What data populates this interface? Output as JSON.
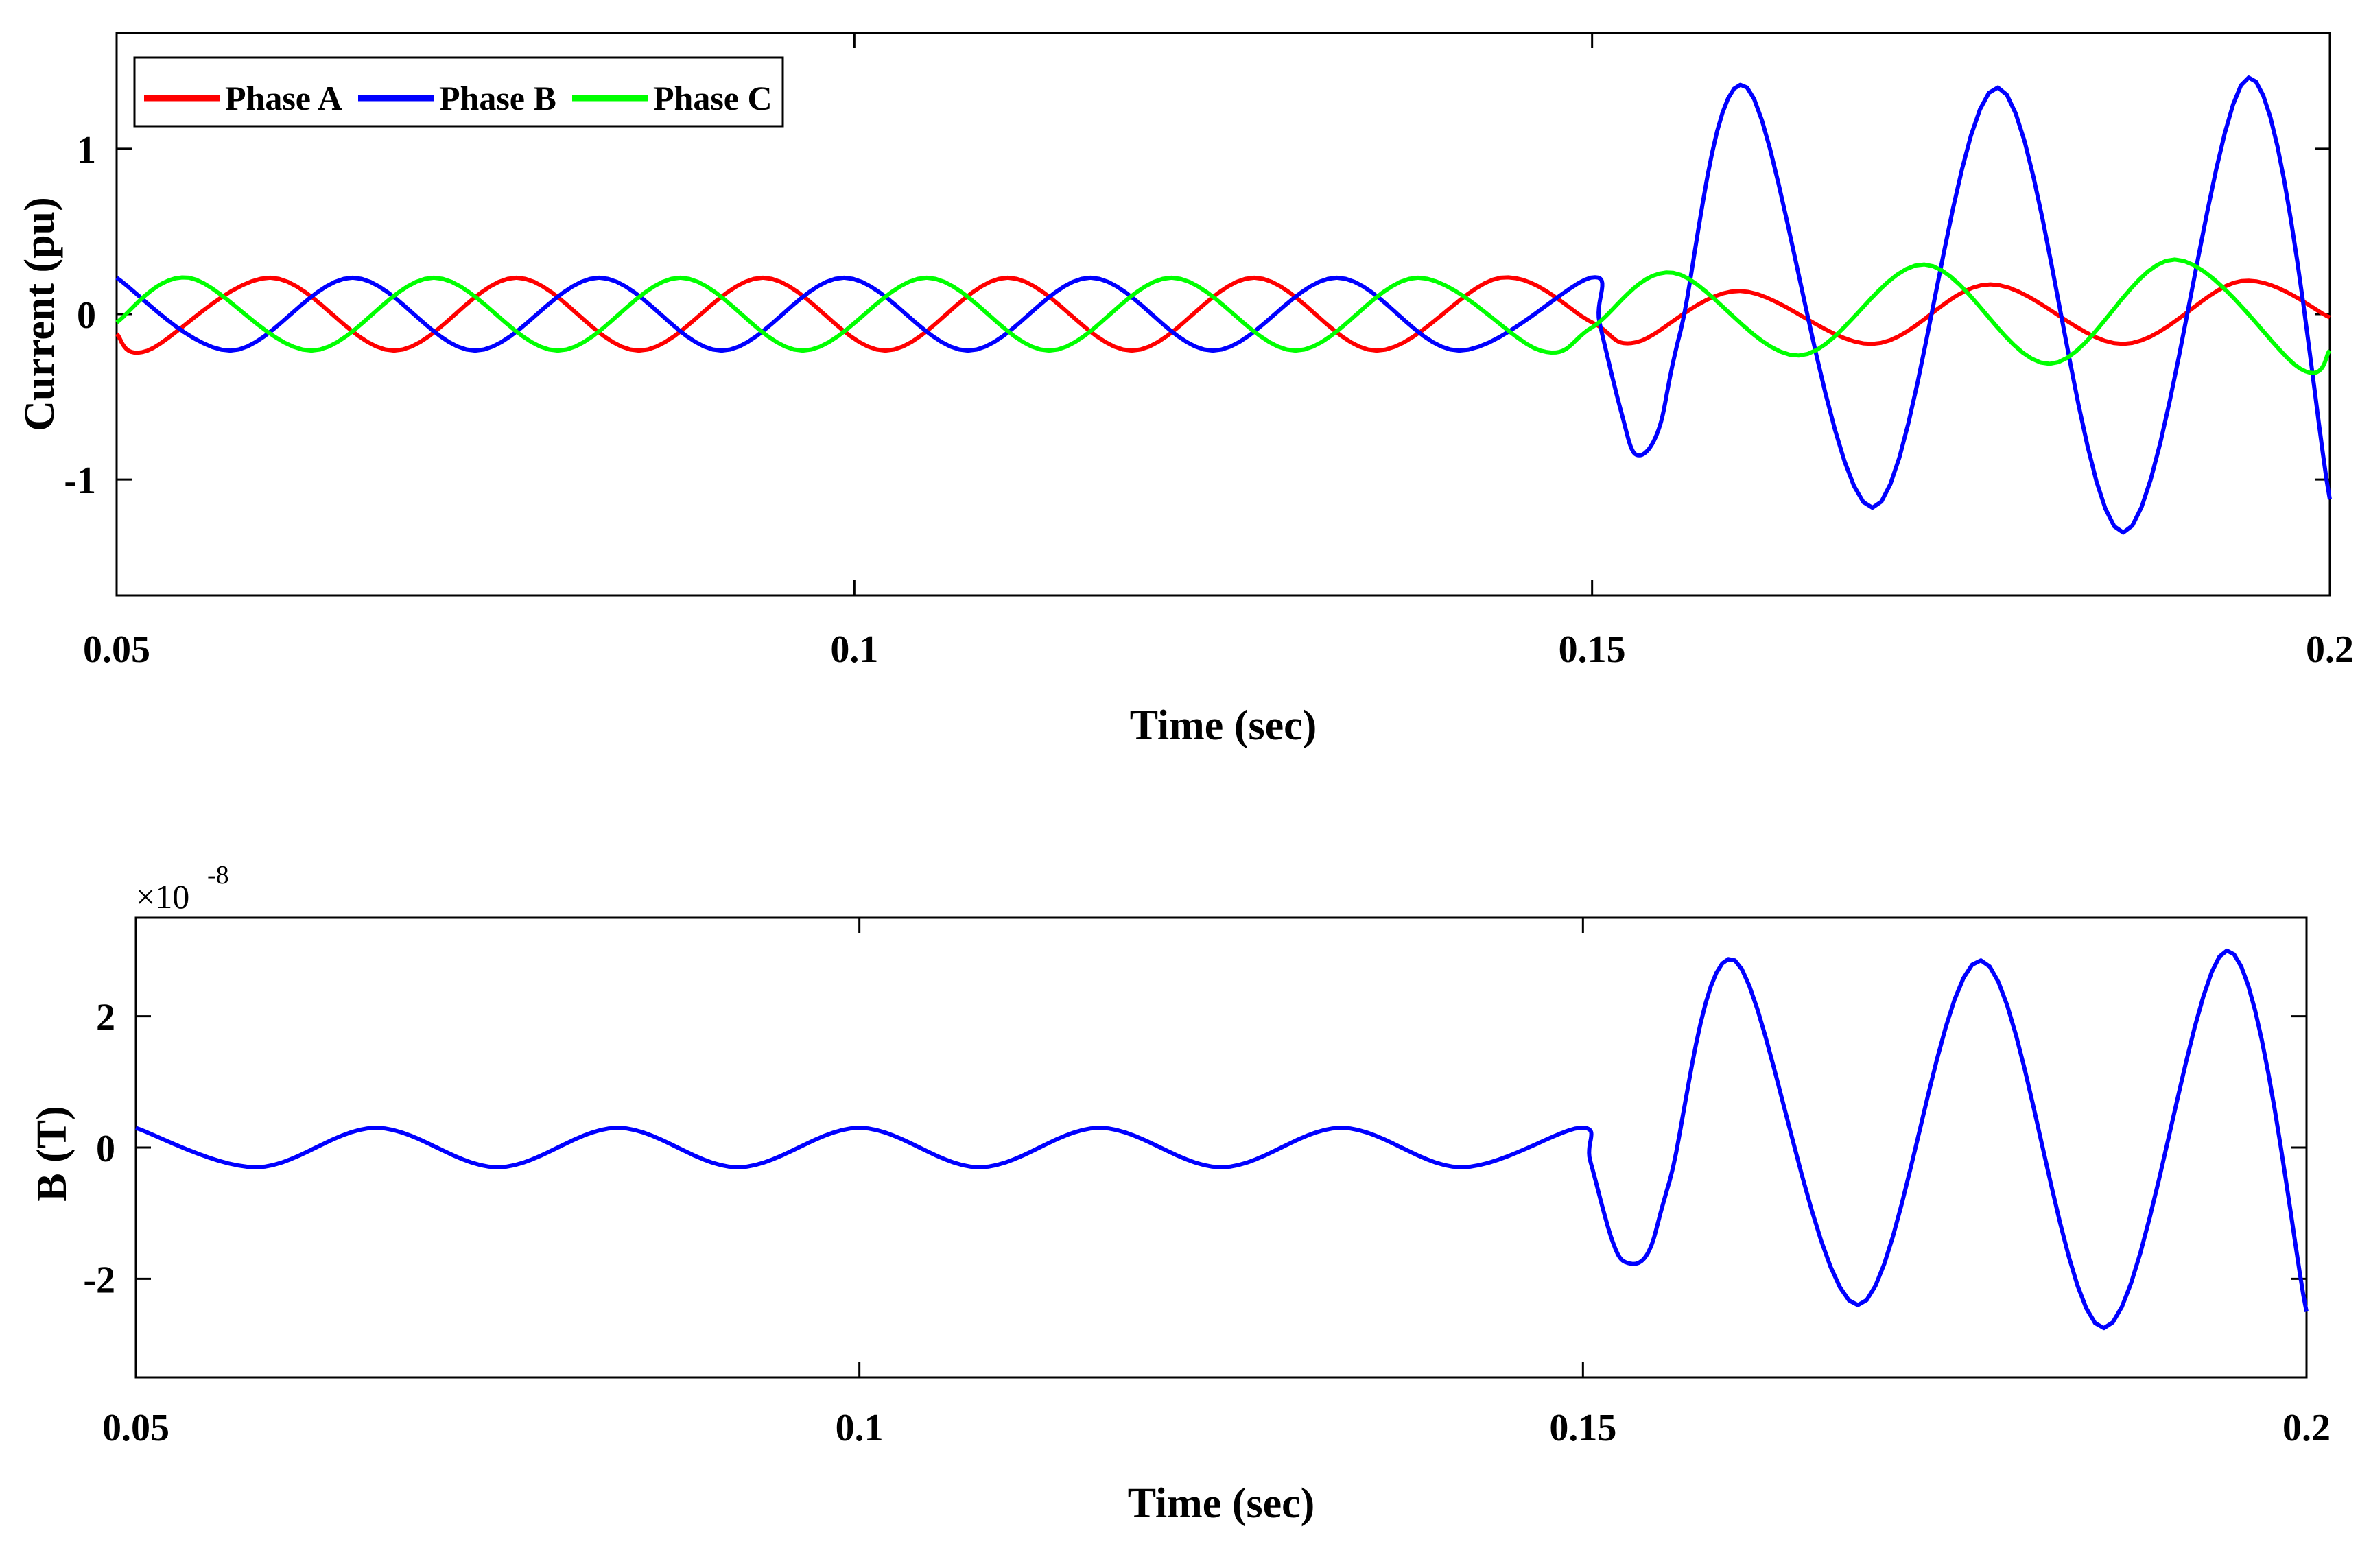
{
  "chart_data": [
    {
      "type": "line",
      "title": "",
      "xlabel": "Time (sec)",
      "ylabel": "Current (pu)",
      "xlim": [
        0.05,
        0.2
      ],
      "ylim": [
        -1.7,
        1.7
      ],
      "xticks": [
        0.05,
        0.1,
        0.15,
        0.2
      ],
      "xtick_labels": [
        "0.05",
        "0.1",
        "0.15",
        "0.2"
      ],
      "yticks": [
        -1,
        0,
        1
      ],
      "ytick_labels": [
        "-1",
        "0",
        "1"
      ],
      "grid": false,
      "legend": {
        "placement": "top-left",
        "orientation": "horizontal"
      },
      "series": [
        {
          "name": "Phase A",
          "color": "#ff0000",
          "description": "pre-fault 60 Hz sinusoid, amplitude 0.22 pu; after fault at 0.15 s amplitude about 0.16 pu",
          "points": [
            [
              0.05,
              -0.12
            ],
            [
              0.0521,
              -0.22
            ],
            [
              0.0604,
              0.22
            ],
            [
              0.0688,
              -0.22
            ],
            [
              0.0771,
              0.22
            ],
            [
              0.0854,
              -0.22
            ],
            [
              0.0938,
              0.22
            ],
            [
              0.1021,
              -0.22
            ],
            [
              0.1104,
              0.22
            ],
            [
              0.1188,
              -0.22
            ],
            [
              0.1271,
              0.22
            ],
            [
              0.1354,
              -0.22
            ],
            [
              0.1438,
              0.22
            ],
            [
              0.15,
              -0.05
            ],
            [
              0.153,
              -0.17
            ],
            [
              0.16,
              0.14
            ],
            [
              0.169,
              -0.18
            ],
            [
              0.177,
              0.18
            ],
            [
              0.186,
              -0.18
            ],
            [
              0.194,
              0.2
            ],
            [
              0.2,
              -0.02
            ]
          ]
        },
        {
          "name": "Phase B",
          "color": "#0000ff",
          "description": "pre-fault amplitude 0.22 pu; fault at 0.15 s, dips to -0.85 then large oscillation about 1.35 pu",
          "points": [
            [
              0.05,
              0.22
            ],
            [
              0.0577,
              -0.22
            ],
            [
              0.066,
              0.22
            ],
            [
              0.0743,
              -0.22
            ],
            [
              0.0827,
              0.22
            ],
            [
              0.091,
              -0.22
            ],
            [
              0.0993,
              0.22
            ],
            [
              0.1077,
              -0.22
            ],
            [
              0.116,
              0.22
            ],
            [
              0.1243,
              -0.22
            ],
            [
              0.1327,
              0.22
            ],
            [
              0.141,
              -0.22
            ],
            [
              0.1499,
              0.22
            ],
            [
              0.1505,
              -0.05
            ],
            [
              0.152,
              -0.6
            ],
            [
              0.153,
              -0.85
            ],
            [
              0.1545,
              -0.7
            ],
            [
              0.156,
              -0.1
            ],
            [
              0.1605,
              1.37
            ],
            [
              0.169,
              -1.17
            ],
            [
              0.1775,
              1.37
            ],
            [
              0.186,
              -1.32
            ],
            [
              0.1945,
              1.43
            ],
            [
              0.2,
              -1.12
            ]
          ]
        },
        {
          "name": "Phase C",
          "color": "#00ff00",
          "description": "pre-fault amplitude 0.22 pu; after fault amplitude about 0.25 to 0.32 pu",
          "points": [
            [
              0.05,
              -0.05
            ],
            [
              0.0549,
              0.22
            ],
            [
              0.0632,
              -0.22
            ],
            [
              0.0715,
              0.22
            ],
            [
              0.0799,
              -0.22
            ],
            [
              0.0882,
              0.22
            ],
            [
              0.0965,
              -0.22
            ],
            [
              0.1049,
              0.22
            ],
            [
              0.1132,
              -0.22
            ],
            [
              0.1215,
              0.22
            ],
            [
              0.1299,
              -0.22
            ],
            [
              0.1382,
              0.22
            ],
            [
              0.1465,
              -0.22
            ],
            [
              0.15,
              -0.08
            ],
            [
              0.1555,
              0.25
            ],
            [
              0.164,
              -0.25
            ],
            [
              0.1725,
              0.3
            ],
            [
              0.181,
              -0.3
            ],
            [
              0.1895,
              0.33
            ],
            [
              0.198,
              -0.33
            ],
            [
              0.2,
              -0.22
            ]
          ]
        }
      ]
    },
    {
      "type": "line",
      "title": "",
      "xlabel": "Time (sec)",
      "ylabel": "B (T)",
      "y_exponent_label": "×10",
      "y_exponent": "-8",
      "xlim": [
        0.05,
        0.2
      ],
      "ylim": [
        -3.5,
        3.5
      ],
      "xticks": [
        0.05,
        0.1,
        0.15,
        0.2
      ],
      "xtick_labels": [
        "0.05",
        "0.1",
        "0.15",
        "0.2"
      ],
      "yticks": [
        -2,
        0,
        2
      ],
      "ytick_labels": [
        "-2",
        "0",
        "2"
      ],
      "grid": false,
      "series": [
        {
          "color": "#0000ff",
          "description": "pre-fault amplitude 0.3e-8 T; after fault at 0.15 s dips to -1.8 then oscillates about 2.8",
          "points": [
            [
              0.05,
              0.3
            ],
            [
              0.0583,
              -0.3
            ],
            [
              0.0666,
              0.3
            ],
            [
              0.075,
              -0.3
            ],
            [
              0.0833,
              0.3
            ],
            [
              0.0916,
              -0.3
            ],
            [
              0.1,
              0.3
            ],
            [
              0.1083,
              -0.3
            ],
            [
              0.1166,
              0.3
            ],
            [
              0.125,
              -0.3
            ],
            [
              0.1333,
              0.3
            ],
            [
              0.1416,
              -0.3
            ],
            [
              0.1498,
              0.3
            ],
            [
              0.1505,
              -0.2
            ],
            [
              0.152,
              -1.4
            ],
            [
              0.153,
              -1.75
            ],
            [
              0.1545,
              -1.6
            ],
            [
              0.156,
              -0.5
            ],
            [
              0.1605,
              2.85
            ],
            [
              0.169,
              -2.4
            ],
            [
              0.1775,
              2.85
            ],
            [
              0.186,
              -2.75
            ],
            [
              0.1945,
              3.0
            ],
            [
              0.2,
              -2.5
            ]
          ]
        }
      ]
    }
  ]
}
